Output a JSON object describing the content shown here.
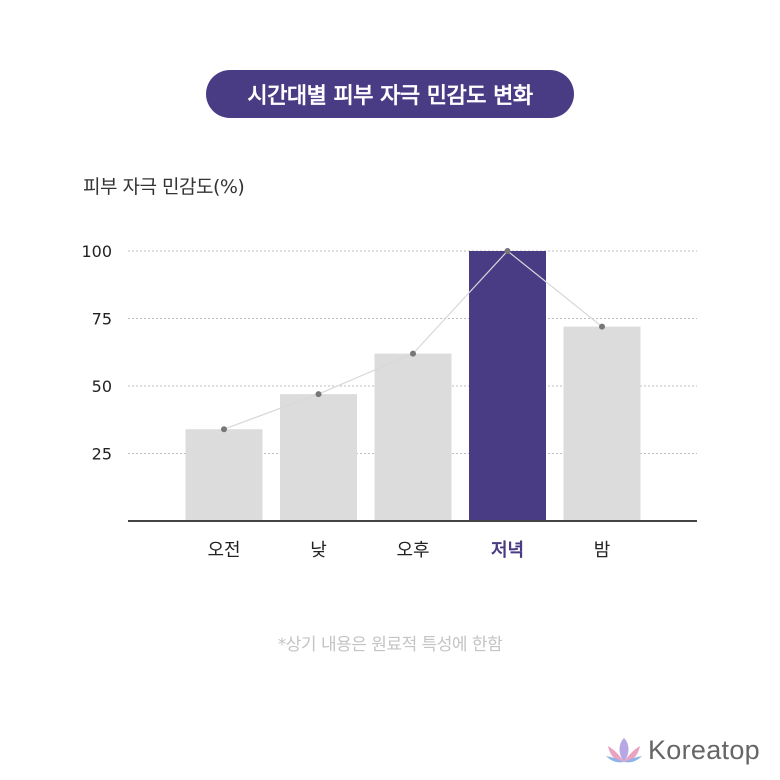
{
  "title": "시간대별 피부 자극 민감도 변화",
  "footnote": "*상기 내용은 원료적 특성에 한함",
  "brand": {
    "name": "Koreatop",
    "icon": "lotus-icon"
  },
  "colors": {
    "highlight": "#4a3b85",
    "bar": "#dcdcdc",
    "line": "#d8d8d8",
    "point": "#777777",
    "axis": "#444444",
    "grid": "#bdbdbd",
    "label": "#222222"
  },
  "chart_data": {
    "type": "bar",
    "ylabel": "피부 자극 민감도(%)",
    "categories": [
      "오전",
      "낮",
      "오후",
      "저녁",
      "밤"
    ],
    "values": [
      34,
      47,
      62,
      100,
      72
    ],
    "highlight_index": 3,
    "yticks": [
      25,
      50,
      75,
      100
    ],
    "ylim": [
      0,
      100
    ],
    "grid": true,
    "overlay_line": true
  }
}
